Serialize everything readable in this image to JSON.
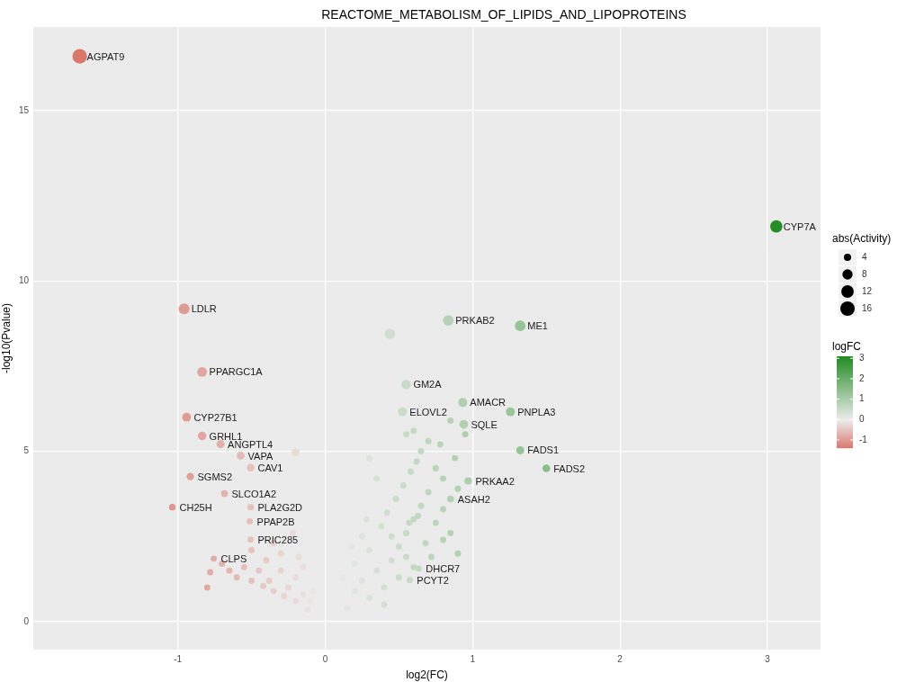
{
  "chart_data": {
    "type": "bubble",
    "title": "REACTOME_METABOLISM_OF_LIPIDS_AND_LIPOPROTEINS",
    "xlabel": "log2(FC)",
    "ylabel": "-log10(Pvalue)",
    "legend_title": "abs(Activity)",
    "clabel": "logFC",
    "xlim": [
      -1.98,
      3.36
    ],
    "ylim": [
      -0.82,
      17.45
    ],
    "xticks": [
      -1,
      0,
      1,
      2,
      3
    ],
    "yticks": [
      0,
      5,
      10,
      15
    ],
    "grid": true,
    "size_legend": [
      4,
      8,
      12,
      16
    ],
    "clim": [
      -1.4,
      3.1
    ],
    "cticks": [
      -1,
      0,
      1,
      2,
      3
    ],
    "series": [
      {
        "x": [
          -1.665,
          -0.957,
          -0.835,
          -0.94,
          -0.835,
          -0.71,
          -0.573,
          -0.506,
          -0.915,
          -0.683,
          -1.037,
          -0.506,
          -0.512,
          -0.506,
          -0.756,
          0.835,
          1.323,
          0.549,
          0.933,
          1.256,
          0.524,
          0.94,
          1.323,
          1.5,
          0.97,
          0.85,
          0.634,
          0.573,
          3.06,
          0.439,
          -0.2,
          -0.35,
          -0.3,
          -0.4,
          -0.45,
          -0.5,
          -0.38,
          -0.3,
          -0.25,
          -0.2,
          -0.15,
          -0.1,
          -0.12,
          -0.2,
          -0.28,
          -0.35,
          -0.42,
          -0.55,
          -0.6,
          -0.7,
          -0.78,
          -0.8,
          -0.65,
          -0.22,
          -0.18,
          -0.08,
          -0.15,
          -0.5,
          0.15,
          0.2,
          0.25,
          0.3,
          0.35,
          0.4,
          0.45,
          0.5,
          0.55,
          0.6,
          0.65,
          0.3,
          0.25,
          0.2,
          0.38,
          0.42,
          0.48,
          0.53,
          0.58,
          0.62,
          0.7,
          0.75,
          0.68,
          0.72,
          0.8,
          0.85,
          0.35,
          0.3,
          0.12,
          0.18,
          0.28,
          0.45,
          0.55,
          0.6,
          0.5,
          0.4,
          0.65,
          0.75,
          0.8,
          0.88,
          0.9,
          0.7,
          0.6,
          0.55,
          0.78,
          0.85,
          0.95,
          0.63,
          0.57,
          0.8,
          0.9
        ],
        "values": [
          16.59,
          9.18,
          7.33,
          6.0,
          5.45,
          5.21,
          4.87,
          4.52,
          4.26,
          3.76,
          3.36,
          3.36,
          2.94,
          2.41,
          1.85,
          8.84,
          8.68,
          6.96,
          6.43,
          6.16,
          6.16,
          5.79,
          5.03,
          4.5,
          4.13,
          3.6,
          1.56,
          1.22,
          11.6,
          8.44,
          4.97,
          2.3,
          2.0,
          1.8,
          1.5,
          1.2,
          1.2,
          1.5,
          1.0,
          1.3,
          0.8,
          0.6,
          0.35,
          0.6,
          0.75,
          0.9,
          1.05,
          1.6,
          1.3,
          1.7,
          1.45,
          1.0,
          1.5,
          2.6,
          1.9,
          0.9,
          1.6,
          2.1,
          0.4,
          0.9,
          1.2,
          0.7,
          1.5,
          1.0,
          1.8,
          2.2,
          2.6,
          3.0,
          3.4,
          2.1,
          2.5,
          1.7,
          2.8,
          3.2,
          3.6,
          4.0,
          4.4,
          4.7,
          3.8,
          2.9,
          2.3,
          1.9,
          3.3,
          2.6,
          4.2,
          4.79,
          1.3,
          2.2,
          3.0,
          2.5,
          1.9,
          1.6,
          1.3,
          0.5,
          5.0,
          4.5,
          4.2,
          4.8,
          3.9,
          5.3,
          5.6,
          5.5,
          5.2,
          5.9,
          5.5,
          3.1,
          2.9,
          2.4,
          2.0
        ],
        "sizes": [
          16.6,
          9.2,
          7.3,
          6,
          5.5,
          5.2,
          4.9,
          4.5,
          4.3,
          3.8,
          3.4,
          3.4,
          3,
          3,
          3,
          8.8,
          8.7,
          7,
          6.4,
          6.2,
          6.2,
          5.8,
          5,
          4.5,
          4.1,
          3.6,
          3,
          3,
          11.6,
          8.4,
          5,
          3,
          3,
          3,
          3,
          3,
          3,
          3,
          3,
          3,
          3,
          3,
          3,
          3,
          3,
          3,
          3,
          3,
          3,
          3,
          3,
          3,
          3,
          3,
          3,
          3,
          3,
          3,
          3,
          3,
          3,
          3,
          3,
          3,
          3,
          3,
          3,
          3,
          3,
          3,
          3,
          3,
          3,
          3,
          3,
          3,
          3,
          3,
          3,
          3,
          3,
          3,
          3,
          3,
          3,
          3,
          3,
          3,
          3,
          3,
          3,
          3,
          3,
          3,
          3,
          3,
          3,
          3,
          3,
          3,
          3,
          3,
          3,
          3,
          3,
          3,
          3,
          3,
          3
        ],
        "cvalues": [
          -1.665,
          -0.957,
          -0.835,
          -0.94,
          -0.835,
          -0.71,
          -0.573,
          -0.506,
          -0.915,
          -0.683,
          -1.037,
          -0.506,
          -0.512,
          -0.506,
          -0.756,
          0.835,
          1.323,
          0.549,
          0.933,
          1.256,
          0.524,
          0.94,
          1.323,
          1.5,
          0.97,
          0.85,
          0.634,
          0.573,
          3.06,
          0.439,
          -0.2,
          -0.35,
          -0.3,
          -0.4,
          -0.45,
          -0.5,
          -0.38,
          -0.3,
          -0.25,
          -0.2,
          -0.15,
          -0.1,
          -0.12,
          -0.2,
          -0.28,
          -0.35,
          -0.42,
          -0.55,
          -0.6,
          -0.7,
          -0.78,
          -0.8,
          -0.65,
          -0.22,
          -0.18,
          -0.08,
          -0.15,
          -0.5,
          0.15,
          0.2,
          0.25,
          0.3,
          0.35,
          0.4,
          0.45,
          0.5,
          0.55,
          0.6,
          0.65,
          0.3,
          0.25,
          0.2,
          0.38,
          0.42,
          0.48,
          0.53,
          0.58,
          0.62,
          0.7,
          0.75,
          0.68,
          0.72,
          0.8,
          0.85,
          0.35,
          0.3,
          0.12,
          0.18,
          0.28,
          0.45,
          0.55,
          0.6,
          0.5,
          0.4,
          0.65,
          0.75,
          0.8,
          0.88,
          0.9,
          0.7,
          0.6,
          0.55,
          0.78,
          0.85,
          0.95,
          0.63,
          0.57,
          0.8,
          0.9
        ]
      }
    ],
    "annotations": [
      {
        "text": "AGPAT9",
        "x": -1.665,
        "y": 16.59
      },
      {
        "text": "LDLR",
        "x": -0.957,
        "y": 9.18
      },
      {
        "text": "PPARGC1A",
        "x": -0.835,
        "y": 7.33
      },
      {
        "text": "CYP27B1",
        "x": -0.94,
        "y": 6.0
      },
      {
        "text": "GRHL1",
        "x": -0.835,
        "y": 5.45
      },
      {
        "text": "ANGPTL4",
        "x": -0.71,
        "y": 5.21
      },
      {
        "text": "VAPA",
        "x": -0.573,
        "y": 4.87
      },
      {
        "text": "CAV1",
        "x": -0.506,
        "y": 4.52
      },
      {
        "text": "SGMS2",
        "x": -0.915,
        "y": 4.26
      },
      {
        "text": "SLCO1A2",
        "x": -0.683,
        "y": 3.76
      },
      {
        "text": "CH25H",
        "x": -1.037,
        "y": 3.36
      },
      {
        "text": "PLA2G2D",
        "x": -0.506,
        "y": 3.36
      },
      {
        "text": "PPAP2B",
        "x": -0.512,
        "y": 2.94
      },
      {
        "text": "PRIC285",
        "x": -0.506,
        "y": 2.41
      },
      {
        "text": "CLPS",
        "x": -0.756,
        "y": 1.85
      },
      {
        "text": "PRKAB2",
        "x": 0.835,
        "y": 8.84
      },
      {
        "text": "ME1",
        "x": 1.323,
        "y": 8.68
      },
      {
        "text": "GM2A",
        "x": 0.549,
        "y": 6.96
      },
      {
        "text": "AMACR",
        "x": 0.933,
        "y": 6.43
      },
      {
        "text": "PNPLA3",
        "x": 1.256,
        "y": 6.16
      },
      {
        "text": "ELOVL2",
        "x": 0.524,
        "y": 6.16
      },
      {
        "text": "SQLE",
        "x": 0.94,
        "y": 5.79
      },
      {
        "text": "FADS1",
        "x": 1.323,
        "y": 5.03
      },
      {
        "text": "FADS2",
        "x": 1.5,
        "y": 4.5
      },
      {
        "text": "PRKAA2",
        "x": 0.97,
        "y": 4.13
      },
      {
        "text": "ASAH2",
        "x": 0.85,
        "y": 3.6
      },
      {
        "text": "DHCR7",
        "x": 0.634,
        "y": 1.56
      },
      {
        "text": "PCYT2",
        "x": 0.573,
        "y": 1.22
      },
      {
        "text": "CYP7A",
        "x": 3.06,
        "y": 11.6
      }
    ]
  }
}
